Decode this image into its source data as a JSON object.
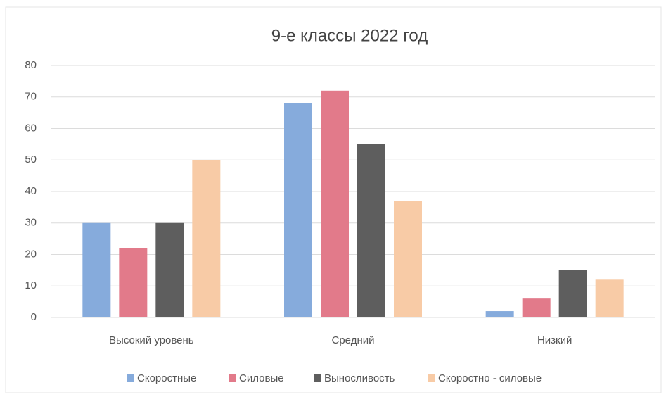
{
  "chart_data": {
    "type": "bar",
    "title": "9-е классы  2022 год",
    "categories": [
      "Высокий уровень",
      "Средний",
      "Низкий"
    ],
    "series": [
      {
        "name": "Скоростные",
        "color": "#86abdc",
        "values": [
          30,
          68,
          2
        ]
      },
      {
        "name": "Силовые",
        "color": "#e27a8a",
        "values": [
          22,
          72,
          6
        ]
      },
      {
        "name": "Выносливость",
        "color": "#5e5e5e",
        "values": [
          30,
          55,
          15
        ]
      },
      {
        "name": "Скоростно - силовые",
        "color": "#f8cba6",
        "values": [
          50,
          37,
          12
        ]
      }
    ],
    "ylim": [
      0,
      80
    ],
    "yticks": [
      0,
      10,
      20,
      30,
      40,
      50,
      60,
      70,
      80
    ],
    "grid": true,
    "legend": "bottom"
  }
}
